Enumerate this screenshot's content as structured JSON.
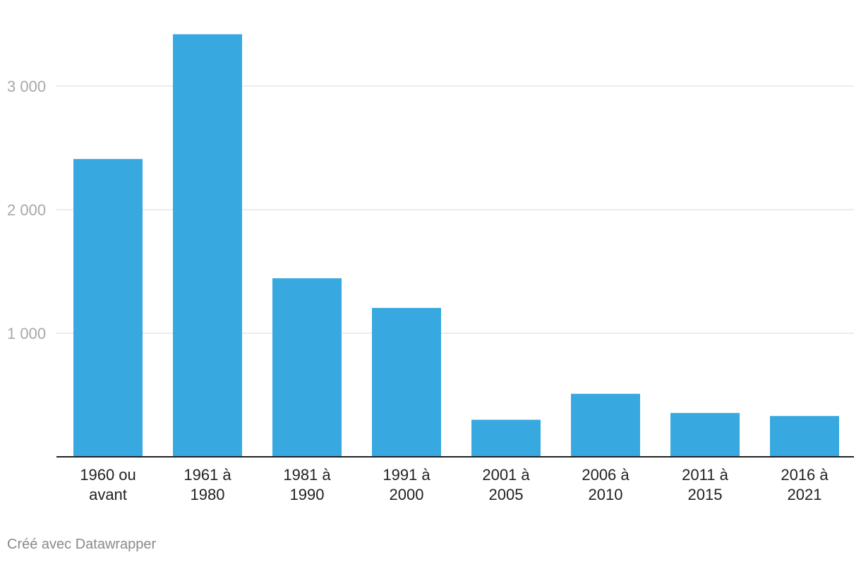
{
  "chart_data": {
    "type": "bar",
    "categories": [
      [
        "1960 ou",
        "avant"
      ],
      [
        "1961 à",
        "1980"
      ],
      [
        "1981 à",
        "1990"
      ],
      [
        "1991 à",
        "2000"
      ],
      [
        "2001 à",
        "2005"
      ],
      [
        "2006 à",
        "2010"
      ],
      [
        "2011 à",
        "2015"
      ],
      [
        "2016 à",
        "2021"
      ]
    ],
    "values": [
      2410,
      3420,
      1445,
      1205,
      300,
      510,
      355,
      330
    ],
    "ylim": [
      0,
      3500
    ],
    "yticks": [
      1000,
      2000,
      3000
    ],
    "ytick_labels": [
      "1 000",
      "2 000",
      "3 000"
    ],
    "grid": true,
    "bar_color": "#38a9e0",
    "grid_color": "#e5e5e5",
    "tick_label_color": "#a8a8a8"
  },
  "credit": "Créé avec Datawrapper"
}
